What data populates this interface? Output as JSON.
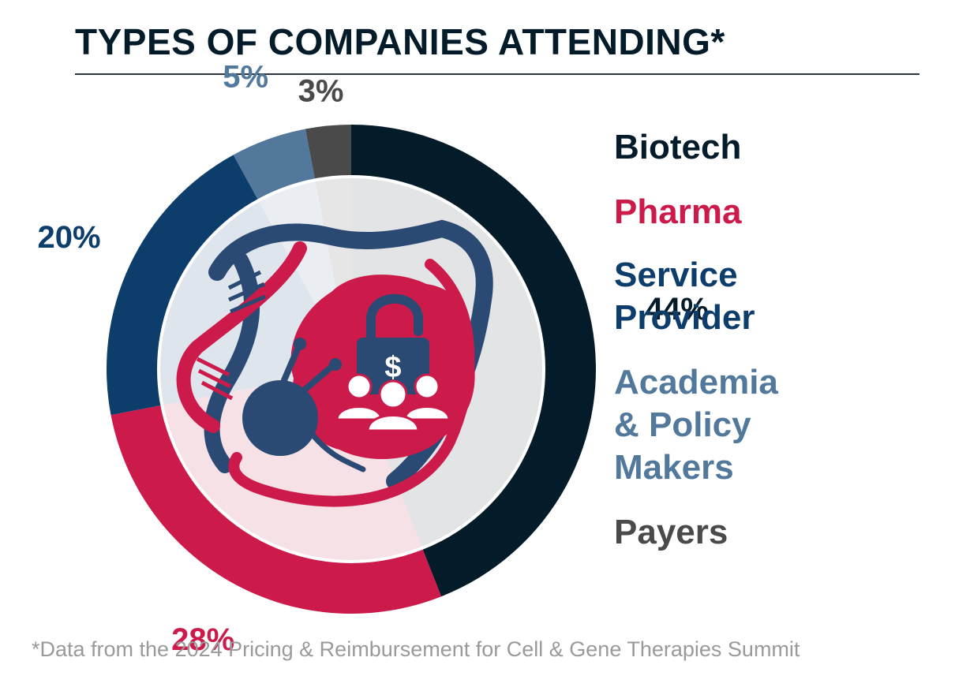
{
  "title": "TYPES OF COMPANIES ATTENDING*",
  "footnote": "*Data from the 2024 Pricing & Reimbursement for Cell & Gene Therapies Summit",
  "chart_data": {
    "type": "pie",
    "style": "donut",
    "title": "TYPES OF COMPANIES ATTENDING*",
    "legend_placement": "right",
    "categories": [
      "Biotech",
      "Pharma",
      "Service Provider",
      "Academia & Policy Makers",
      "Payers"
    ],
    "legend_labels": [
      "Biotech",
      "Pharma",
      "Service\nProvider",
      "Academia\n& Policy\nMakers",
      "Payers"
    ],
    "values": [
      44,
      28,
      20,
      5,
      3
    ],
    "value_labels": [
      "44%",
      "28%",
      "20%",
      "5%",
      "3%"
    ],
    "colors": [
      "#041c2a",
      "#cc1a4a",
      "#0d3d6b",
      "#52799b",
      "#4a4a4a"
    ],
    "inner_tints": [
      "#e2e4e6",
      "#f6e1e7",
      "#dfe5ec",
      "#eaeef2",
      "#e6e6e6"
    ]
  },
  "center_icon": "cell-gene-therapy-pricing-icon"
}
